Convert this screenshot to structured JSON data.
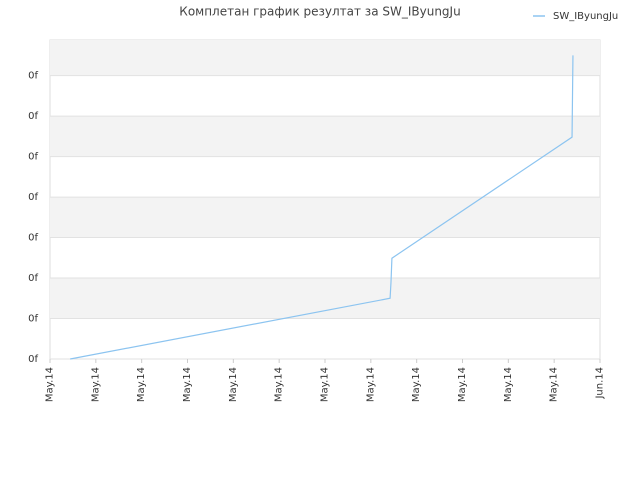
{
  "chart_data": {
    "type": "line",
    "title": "Комплетан график резултат за SW_IByungJu",
    "x": [
      0.44,
      7.42,
      7.44,
      7.46,
      11.39,
      11.41
    ],
    "series": [
      {
        "name": "SW_IByungJu",
        "color": "#8cc4f0",
        "values": [
          0,
          1.5,
          1.9,
          2.49,
          5.48,
          7.5
        ]
      }
    ],
    "xlim": [
      0,
      12
    ],
    "xticks": [
      {
        "value": 0,
        "label": "May.14"
      },
      {
        "value": 1,
        "label": "May.14"
      },
      {
        "value": 2,
        "label": "May.14"
      },
      {
        "value": 3,
        "label": "May.14"
      },
      {
        "value": 4,
        "label": "May.14"
      },
      {
        "value": 5,
        "label": "May.14"
      },
      {
        "value": 6,
        "label": "May.14"
      },
      {
        "value": 7,
        "label": "May.14"
      },
      {
        "value": 8,
        "label": "May.14"
      },
      {
        "value": 9,
        "label": "May.14"
      },
      {
        "value": 10,
        "label": "May.14"
      },
      {
        "value": 11,
        "label": "May.14"
      },
      {
        "value": 12,
        "label": "Jun.14"
      }
    ],
    "ylim": [
      0,
      7.88
    ],
    "yticks": [
      {
        "value": 0,
        "label": "0f"
      },
      {
        "value": 1,
        "label": "0f"
      },
      {
        "value": 2,
        "label": "0f"
      },
      {
        "value": 3,
        "label": "0f"
      },
      {
        "value": 4,
        "label": "0f"
      },
      {
        "value": 5,
        "label": "0f"
      },
      {
        "value": 6,
        "label": "0f"
      },
      {
        "value": 7,
        "label": "0f"
      }
    ],
    "grid": true,
    "legend": "top-right"
  }
}
